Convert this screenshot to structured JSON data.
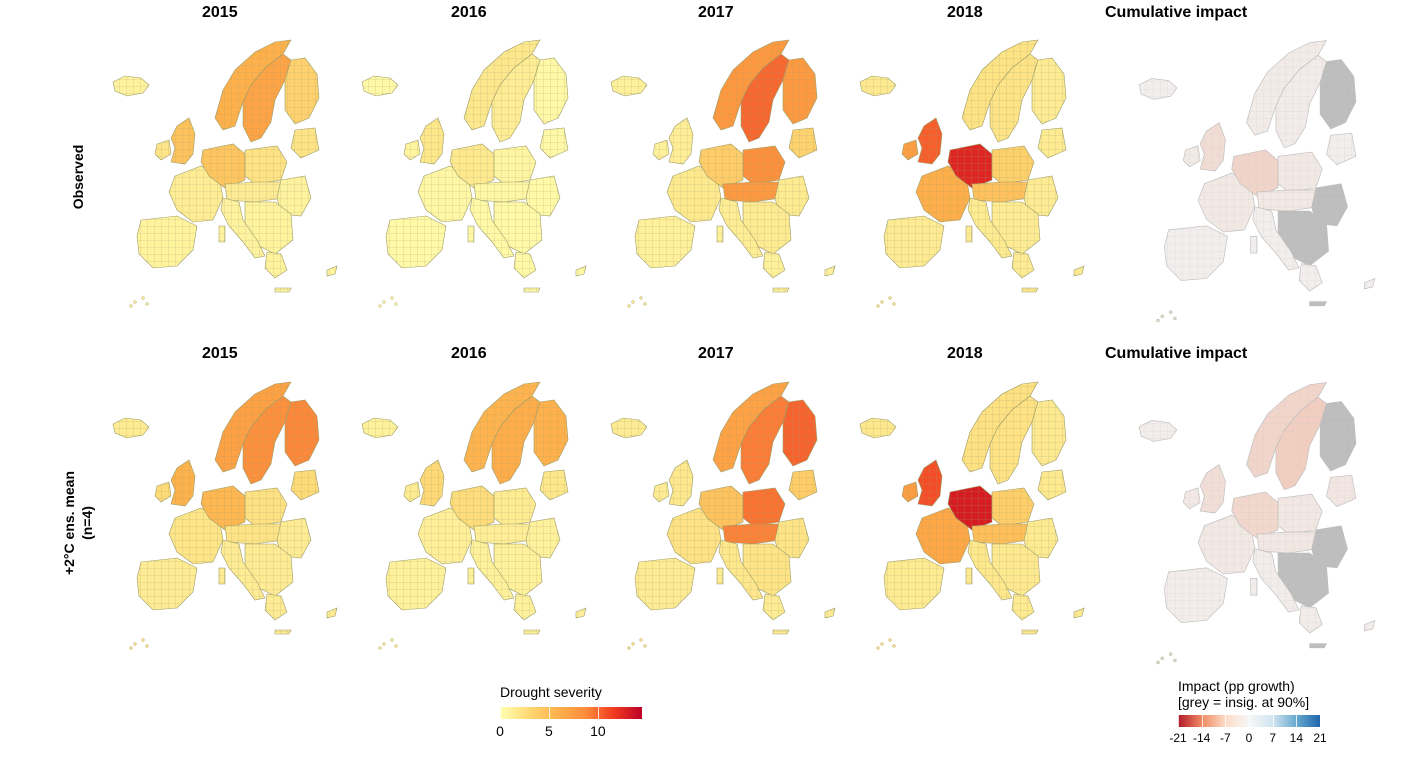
{
  "rows": [
    {
      "label_lines": [
        "Observed"
      ],
      "panels": [
        {
          "title": "2015",
          "scheme": "severity",
          "level": 0.35,
          "hot": [
            [
              0.3,
              0.4,
              0.55
            ],
            [
              0.2,
              0.62,
              0.5
            ]
          ]
        },
        {
          "title": "2016",
          "scheme": "severity",
          "level": 0.18,
          "hot": [
            [
              0.25,
              0.42,
              0.35
            ]
          ]
        },
        {
          "title": "2017",
          "scheme": "severity",
          "level": 0.4,
          "hot": [
            [
              0.15,
              0.65,
              0.9
            ],
            [
              0.45,
              0.58,
              0.7
            ]
          ]
        },
        {
          "title": "2018",
          "scheme": "severity",
          "level": 0.55,
          "hot": [
            [
              0.38,
              0.42,
              1.0
            ],
            [
              0.45,
              0.2,
              0.6
            ]
          ]
        },
        {
          "title": "Cumulative impact",
          "scheme": "impact",
          "level": 0.3,
          "hot": [
            [
              0.35,
              0.42,
              0.6
            ]
          ]
        }
      ]
    },
    {
      "label_lines": [
        "+2°C ens. mean",
        "(n=4)"
      ],
      "panels": [
        {
          "title": "2015",
          "scheme": "severity",
          "level": 0.55,
          "hot": [
            [
              0.3,
              0.4,
              0.65
            ],
            [
              0.12,
              0.68,
              0.85
            ]
          ]
        },
        {
          "title": "2016",
          "scheme": "severity",
          "level": 0.4,
          "hot": [
            [
              0.25,
              0.42,
              0.45
            ],
            [
              0.12,
              0.68,
              0.55
            ]
          ]
        },
        {
          "title": "2017",
          "scheme": "severity",
          "level": 0.55,
          "hot": [
            [
              0.12,
              0.68,
              1.0
            ],
            [
              0.45,
              0.58,
              0.8
            ]
          ]
        },
        {
          "title": "2018",
          "scheme": "severity",
          "level": 0.6,
          "hot": [
            [
              0.38,
              0.42,
              1.0
            ],
            [
              0.45,
              0.22,
              0.6
            ]
          ]
        },
        {
          "title": "Cumulative impact",
          "scheme": "impact",
          "level": 0.45,
          "hot": [
            [
              0.12,
              0.68,
              0.8
            ],
            [
              0.35,
              0.42,
              0.5
            ]
          ]
        }
      ]
    }
  ],
  "legend_severity": {
    "title": "Drought severity",
    "ticks": [
      "0",
      "5",
      "10"
    ],
    "tick_values": [
      0,
      5,
      10
    ],
    "range": [
      0,
      14.5
    ],
    "colors": [
      "#ffffb2",
      "#fed976",
      "#feb24c",
      "#fd8d3c",
      "#f03b20",
      "#bd0026"
    ]
  },
  "legend_impact": {
    "title_lines": [
      "Impact (pp growth)",
      "[grey = insig. at 90%]"
    ],
    "ticks": [
      "-21",
      "-14",
      "-7",
      "0",
      "7",
      "14",
      "21"
    ],
    "tick_values": [
      -21,
      -14,
      -7,
      0,
      7,
      14,
      21
    ],
    "range": [
      -21,
      21
    ],
    "colors": [
      "#b2182b",
      "#ef8a62",
      "#fddbc7",
      "#f7f7f7",
      "#d1e5f0",
      "#67a9cf",
      "#2166ac"
    ]
  },
  "colors": {
    "severity_low": "#ffffb2",
    "severity_mid": "#fd8d3c",
    "severity_high": "#bd0026",
    "impact_neg": "#ef8a62",
    "impact_neutral": "#f2f2f2",
    "insignificant": "#bdbdbd",
    "border": "#9e9e6a"
  }
}
